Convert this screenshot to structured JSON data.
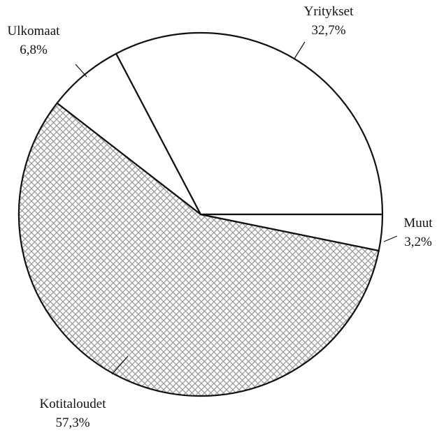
{
  "chart_data": {
    "type": "pie",
    "categories": [
      "Yritykset",
      "Ulkomaat",
      "Kotitaloudet",
      "Muut"
    ],
    "values": [
      32.7,
      6.8,
      57.3,
      3.2
    ],
    "value_labels": [
      "32,7%",
      "6,8%",
      "57,3%",
      "3,2%"
    ],
    "colors": [
      "#ffffff",
      "#ffffff",
      "#9a9a9a",
      "#ffffff"
    ],
    "hatched": [
      false,
      false,
      true,
      false
    ],
    "start_angle": 0,
    "direction": "counterclockwise"
  }
}
